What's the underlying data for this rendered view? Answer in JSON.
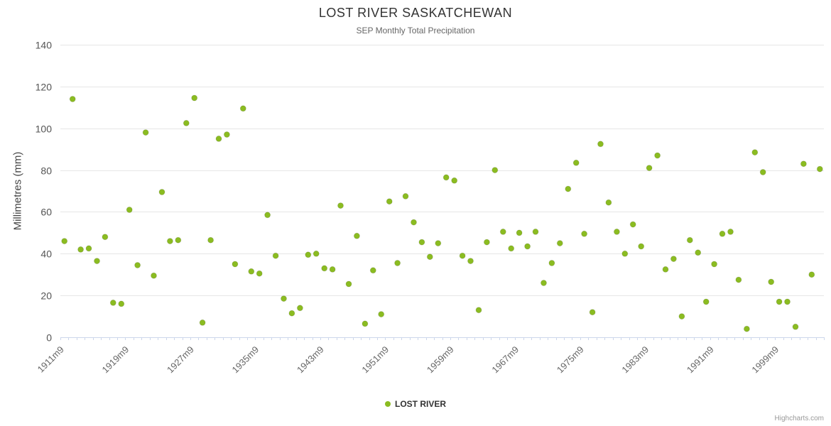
{
  "chart_data": {
    "type": "scatter",
    "title": "LOST RIVER SASKATCHEWAN",
    "subtitle": "SEP Monthly Total Precipitation",
    "ylabel": "Millimetres (mm)",
    "xlabel": "",
    "ylim": [
      0,
      140
    ],
    "ytick_interval": 20,
    "x_label_every": 8,
    "grid": true,
    "legend_position": "bottom",
    "credits": "Highcharts.com",
    "colors": {
      "series": "#8bbc21",
      "gridline": "#e6e6e6",
      "axis_line": "#ccd6eb"
    },
    "series": [
      {
        "name": "LOST RIVER",
        "color": "#8bbc21",
        "x": [
          "1911m9",
          "1912m9",
          "1913m9",
          "1914m9",
          "1915m9",
          "1916m9",
          "1917m9",
          "1918m9",
          "1919m9",
          "1920m9",
          "1921m9",
          "1922m9",
          "1923m9",
          "1924m9",
          "1925m9",
          "1926m9",
          "1927m9",
          "1928m9",
          "1929m9",
          "1930m9",
          "1931m9",
          "1932m9",
          "1933m9",
          "1934m9",
          "1935m9",
          "1936m9",
          "1937m9",
          "1938m9",
          "1939m9",
          "1940m9",
          "1941m9",
          "1942m9",
          "1943m9",
          "1944m9",
          "1945m9",
          "1946m9",
          "1947m9",
          "1948m9",
          "1949m9",
          "1950m9",
          "1951m9",
          "1952m9",
          "1953m9",
          "1954m9",
          "1955m9",
          "1956m9",
          "1957m9",
          "1958m9",
          "1959m9",
          "1960m9",
          "1961m9",
          "1962m9",
          "1963m9",
          "1964m9",
          "1965m9",
          "1966m9",
          "1967m9",
          "1968m9",
          "1969m9",
          "1970m9",
          "1971m9",
          "1972m9",
          "1973m9",
          "1974m9",
          "1975m9",
          "1976m9",
          "1977m9",
          "1978m9",
          "1979m9",
          "1980m9",
          "1981m9",
          "1982m9",
          "1983m9",
          "1984m9",
          "1985m9",
          "1986m9",
          "1987m9",
          "1988m9",
          "1989m9",
          "1990m9",
          "1991m9",
          "1992m9",
          "1993m9",
          "1994m9",
          "1995m9",
          "1996m9",
          "1997m9",
          "1998m9",
          "1999m9",
          "2000m9",
          "2001m9",
          "2002m9",
          "2003m9",
          "2004m9"
        ],
        "values": [
          46,
          114,
          42,
          42.5,
          36.5,
          48,
          16.5,
          16,
          61,
          34.5,
          98,
          29.5,
          69.5,
          46,
          46.5,
          102.5,
          114.5,
          7,
          46.5,
          95,
          97,
          35,
          109.5,
          31.5,
          30.5,
          58.5,
          39,
          18.5,
          11.5,
          14,
          39.5,
          40,
          33,
          32.5,
          63,
          25.5,
          48.5,
          6.5,
          32,
          11,
          65,
          35.5,
          67.5,
          55,
          45.5,
          38.5,
          45,
          76.5,
          75,
          39,
          36.5,
          13,
          45.5,
          80,
          50.5,
          42.5,
          50,
          43.5,
          50.5,
          26,
          35.5,
          45,
          71,
          83.5,
          49.5,
          12,
          92.5,
          64.5,
          50.5,
          40,
          54,
          43.5,
          81,
          87,
          32.5,
          37.5,
          10,
          46.5,
          40.5,
          17,
          35,
          49.5,
          50.5,
          27.5,
          4,
          88.5,
          79,
          26.5,
          17,
          17,
          5,
          83,
          30,
          80.5
        ]
      }
    ]
  }
}
